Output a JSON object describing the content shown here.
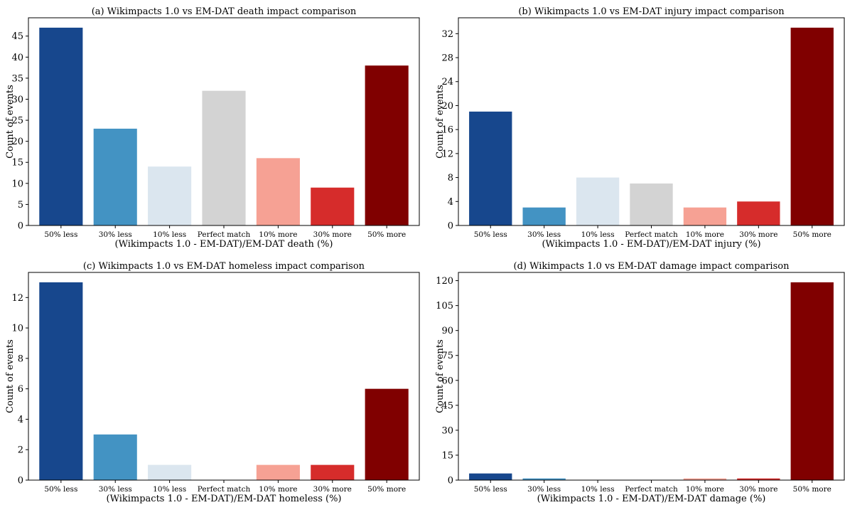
{
  "figure": {
    "categories": [
      "50% less",
      "30% less",
      "10% less",
      "Perfect match",
      "10% more",
      "30% more",
      "50% more"
    ],
    "bar_colors": [
      "#17478d",
      "#4393c3",
      "#dbe6ef",
      "#d3d3d3",
      "#f6a194",
      "#d62c2b",
      "#800000"
    ]
  },
  "chart_data": [
    {
      "type": "bar",
      "title": "(a) Wikimpacts 1.0 vs EM-DAT death impact comparison",
      "xlabel": "(Wikimpacts 1.0 - EM-DAT)/EM-DAT death (%)",
      "ylabel": "Count of events",
      "categories": [
        "50% less",
        "30% less",
        "10% less",
        "Perfect match",
        "10% more",
        "30% more",
        "50% more"
      ],
      "values": [
        47,
        23,
        14,
        32,
        16,
        9,
        38
      ],
      "ylim": [
        0,
        49.35
      ],
      "yticks": [
        0,
        5,
        10,
        15,
        20,
        25,
        30,
        35,
        40,
        45
      ],
      "grid": false
    },
    {
      "type": "bar",
      "title": "(b) Wikimpacts 1.0 vs EM-DAT injury impact comparison",
      "xlabel": "(Wikimpacts 1.0 - EM-DAT)/EM-DAT injury (%)",
      "ylabel": "Count of events",
      "categories": [
        "50% less",
        "30% less",
        "10% less",
        "Perfect match",
        "10% more",
        "30% more",
        "50% more"
      ],
      "values": [
        19,
        3,
        8,
        7,
        3,
        4,
        33
      ],
      "ylim": [
        0,
        34.65
      ],
      "yticks": [
        0,
        4,
        8,
        12,
        16,
        20,
        24,
        28,
        32
      ],
      "grid": false
    },
    {
      "type": "bar",
      "title": "(c) Wikimpacts 1.0 vs EM-DAT homeless impact comparison",
      "xlabel": "(Wikimpacts 1.0 - EM-DAT)/EM-DAT homeless (%)",
      "ylabel": "Count of events",
      "categories": [
        "50% less",
        "30% less",
        "10% less",
        "Perfect match",
        "10% more",
        "30% more",
        "50% more"
      ],
      "values": [
        13,
        3,
        1,
        0,
        1,
        1,
        6
      ],
      "ylim": [
        0,
        13.65
      ],
      "yticks": [
        0,
        2,
        4,
        6,
        8,
        10,
        12
      ],
      "grid": false
    },
    {
      "type": "bar",
      "title": "(d) Wikimpacts 1.0 vs EM-DAT damage impact comparison",
      "xlabel": "(Wikimpacts 1.0 - EM-DAT)/EM-DAT damage (%)",
      "ylabel": "Count of events",
      "categories": [
        "50% less",
        "30% less",
        "10% less",
        "Perfect match",
        "10% more",
        "30% more",
        "50% more"
      ],
      "values": [
        4,
        1,
        0,
        0,
        1,
        1,
        119
      ],
      "ylim": [
        0,
        124.95
      ],
      "yticks": [
        0,
        15,
        30,
        45,
        60,
        75,
        90,
        105,
        120
      ],
      "grid": false
    }
  ]
}
